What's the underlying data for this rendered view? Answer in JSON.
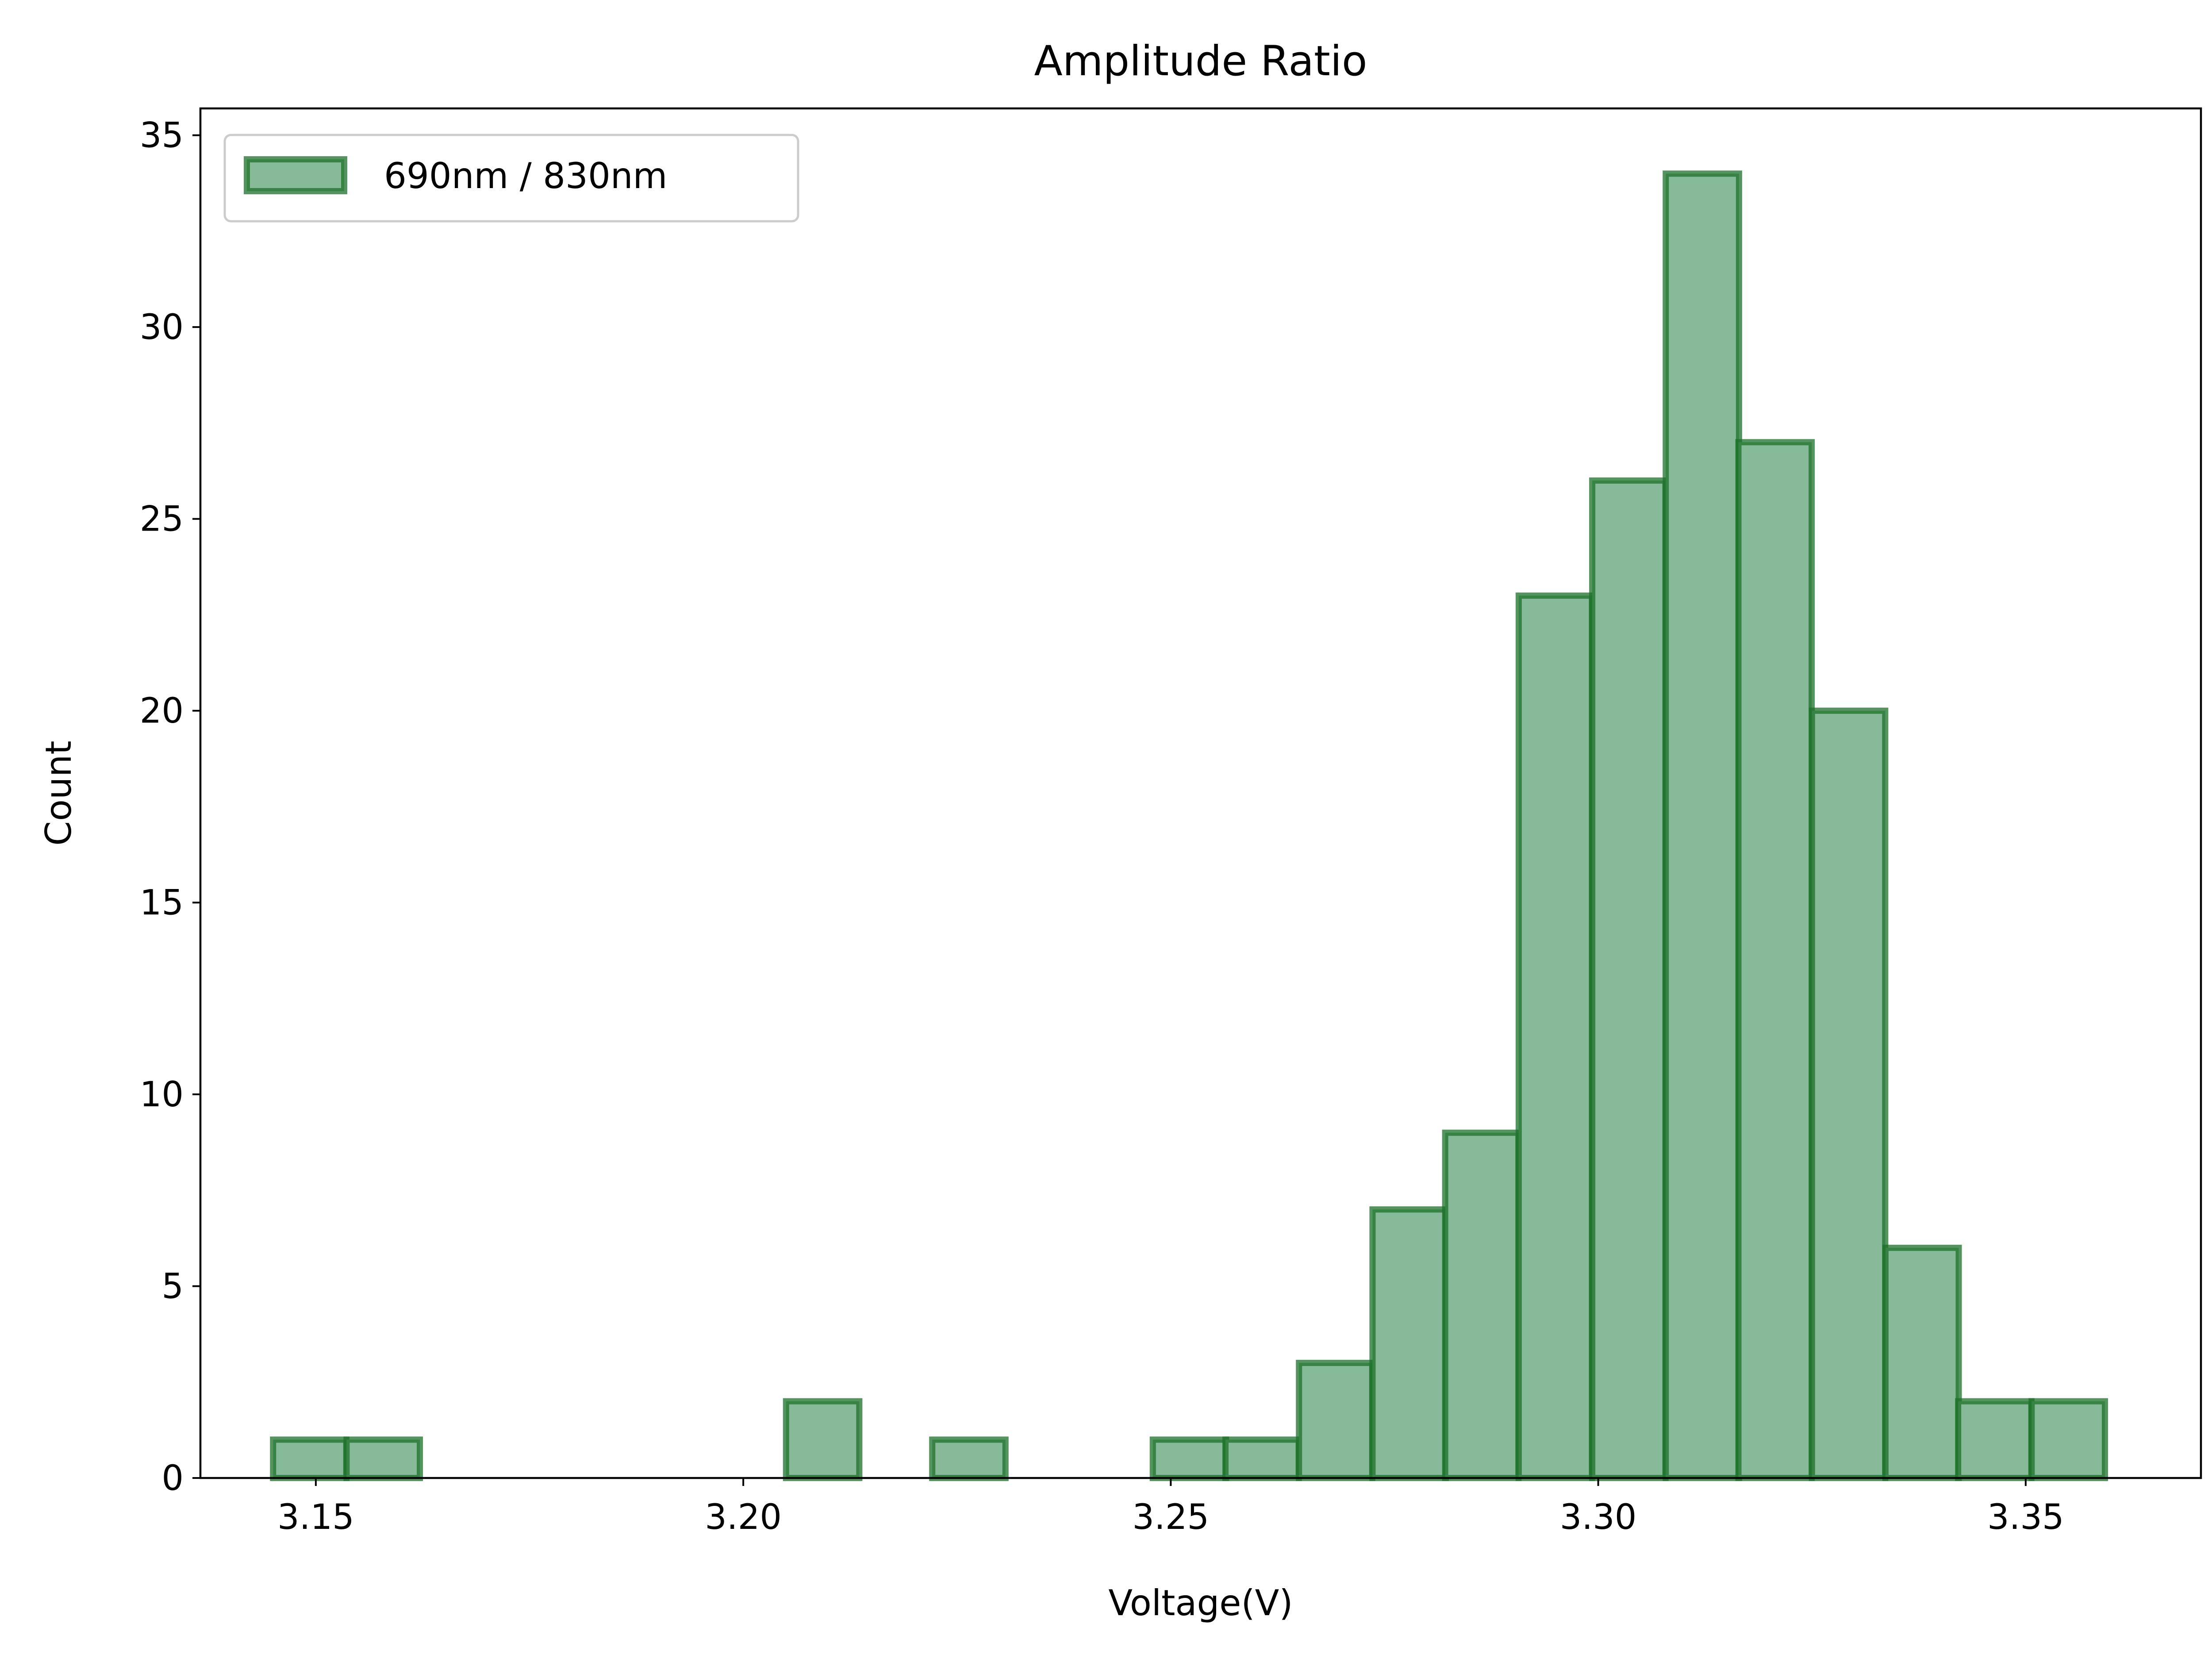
{
  "chart_data": {
    "type": "bar",
    "title": "Amplitude Ratio",
    "xlabel": "Voltage(V)",
    "ylabel": "Count",
    "xlim": [
      3.1365,
      3.3705
    ],
    "ylim": [
      0,
      35.7
    ],
    "x_ticks": [
      3.15,
      3.2,
      3.25,
      3.3,
      3.35
    ],
    "x_tick_labels": [
      "3.15",
      "3.20",
      "3.25",
      "3.30",
      "3.35"
    ],
    "y_ticks": [
      0,
      5,
      10,
      15,
      20,
      25,
      30,
      35
    ],
    "y_tick_labels": [
      "0",
      "5",
      "10",
      "15",
      "20",
      "25",
      "30",
      "35"
    ],
    "grid": false,
    "legend_position": "top-left",
    "bar_fill_color": "#86ba99",
    "bar_edge_color": "#1b7028",
    "bin_width": 0.00857,
    "series": [
      {
        "name": "690nm / 830nm",
        "bin_starts": [
          3.145,
          3.1536,
          3.1621,
          3.1707,
          3.1793,
          3.1879,
          3.1964,
          3.205,
          3.2136,
          3.2221,
          3.2307,
          3.2393,
          3.2479,
          3.2564,
          3.265,
          3.2736,
          3.2821,
          3.2907,
          3.2993,
          3.3079,
          3.3164,
          3.325,
          3.3336,
          3.3421,
          3.3507
        ],
        "values": [
          1,
          1,
          0,
          0,
          0,
          0,
          0,
          2,
          0,
          1,
          0,
          0,
          1,
          1,
          3,
          7,
          9,
          23,
          26,
          34,
          27,
          20,
          6,
          2,
          2
        ]
      }
    ]
  }
}
